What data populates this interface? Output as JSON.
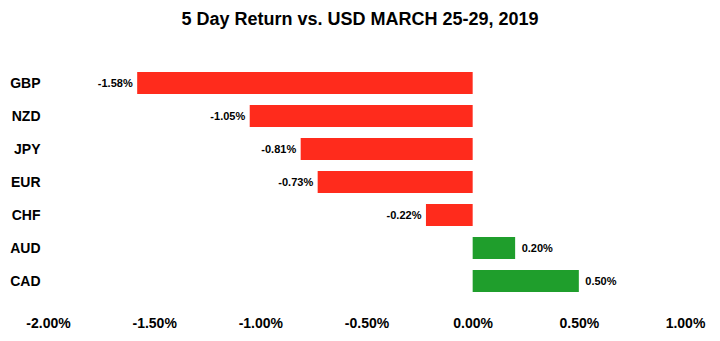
{
  "chart_data": {
    "type": "bar",
    "orientation": "horizontal",
    "title": "5 Day Return vs. USD MARCH 25-29, 2019",
    "categories": [
      "GBP",
      "NZD",
      "JPY",
      "EUR",
      "CHF",
      "AUD",
      "CAD"
    ],
    "values": [
      -1.58,
      -1.05,
      -0.81,
      -0.73,
      -0.22,
      0.2,
      0.5
    ],
    "value_labels": [
      "-1.58%",
      "-1.05%",
      "-0.81%",
      "-0.73%",
      "-0.22%",
      "0.20%",
      "0.50%"
    ],
    "colors": [
      "#ff2b1c",
      "#ff2b1c",
      "#ff2b1c",
      "#ff2b1c",
      "#ff2b1c",
      "#1f9e2c",
      "#1f9e2c"
    ],
    "data_labels": true,
    "grid": false,
    "xlim": [
      -2,
      1
    ],
    "xticks": [
      {
        "value": -2,
        "label": "-2.00%"
      },
      {
        "value": -1.5,
        "label": "-1.50%"
      },
      {
        "value": -1,
        "label": "-1.00%"
      },
      {
        "value": -0.5,
        "label": "-0.50%"
      },
      {
        "value": 0,
        "label": "0.00%"
      },
      {
        "value": 0.5,
        "label": "0.50%"
      },
      {
        "value": 1,
        "label": "1.00%"
      }
    ]
  }
}
